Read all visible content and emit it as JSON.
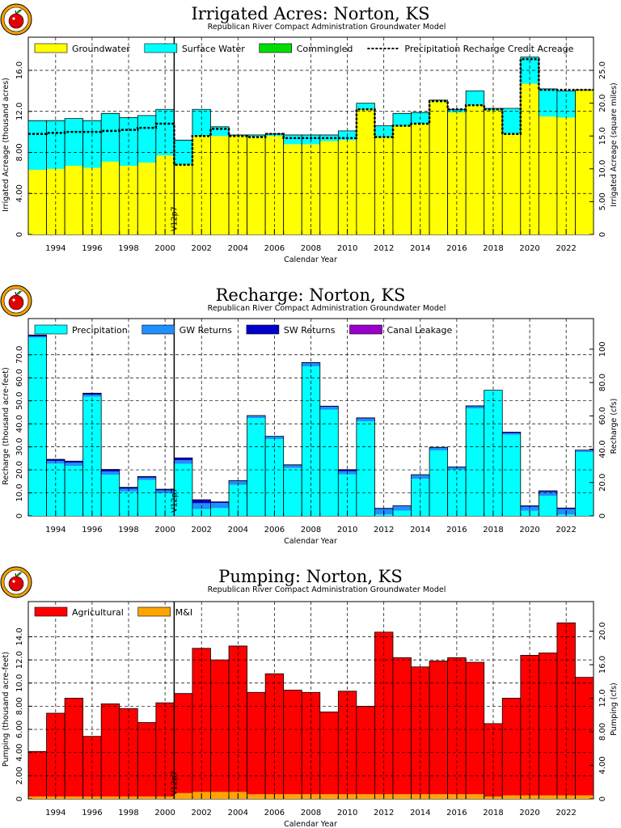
{
  "chart_data": [
    {
      "type": "bar",
      "title": "Irrigated Acres: Norton, KS",
      "subtitle": "Republican River Compact Administration Groundwater Model",
      "xlabel": "Calendar Year",
      "ylabel": "Irrigated Acreage (thousand acres)",
      "ylabel_right": "Irrigated Acreage (square miles)",
      "yticks": [
        "0",
        "4.00",
        "8.00",
        "12.0",
        "16.0"
      ],
      "yticks_right": [
        "0",
        "5.00",
        "10.0",
        "15.0",
        "20.0",
        "25.0"
      ],
      "ylim": [
        0,
        17.5
      ],
      "ylim_right": [
        0,
        27.34
      ],
      "x_tick_labels": [
        "1994",
        "1996",
        "1998",
        "2000",
        "2002",
        "2004",
        "2006",
        "2008",
        "2010",
        "2012",
        "2014",
        "2016",
        "2018",
        "2020",
        "2022"
      ],
      "years": [
        1993,
        1994,
        1995,
        1996,
        1997,
        1998,
        1999,
        2000,
        2001,
        2002,
        2003,
        2004,
        2005,
        2006,
        2007,
        2008,
        2009,
        2010,
        2011,
        2012,
        2013,
        2014,
        2015,
        2016,
        2017,
        2018,
        2019,
        2020,
        2021,
        2022,
        2023
      ],
      "series": [
        {
          "name": "Groundwater",
          "color": "#ffff00",
          "values": [
            6.3,
            6.4,
            6.7,
            6.5,
            7.1,
            6.7,
            7.0,
            7.7,
            6.8,
            9.6,
            9.6,
            9.6,
            9.5,
            9.6,
            8.8,
            8.8,
            9.1,
            9.2,
            12.2,
            9.5,
            10.6,
            10.8,
            13.0,
            11.9,
            12.6,
            12.1,
            9.8,
            14.7,
            11.5,
            11.4,
            14.1
          ]
        },
        {
          "name": "Surface Water",
          "color": "#00ffff",
          "values": [
            4.8,
            4.7,
            4.6,
            4.6,
            4.7,
            4.7,
            4.6,
            4.5,
            2.4,
            2.6,
            0.9,
            0.1,
            0.2,
            0.2,
            0.9,
            0.9,
            0.6,
            0.9,
            0.6,
            1.1,
            1.2,
            1.1,
            0.1,
            0.3,
            1.4,
            0.2,
            2.5,
            2.6,
            2.7,
            2.6,
            0.0
          ]
        },
        {
          "name": "Commingled",
          "color": "#00dd00",
          "values": [
            0,
            0,
            0,
            0,
            0,
            0,
            0,
            0,
            0,
            0,
            0,
            0,
            0,
            0,
            0,
            0,
            0,
            0,
            0,
            0,
            0,
            0,
            0,
            0,
            0,
            0,
            0,
            0,
            0,
            0,
            0
          ]
        }
      ],
      "line": {
        "name": "Precipitation Recharge Credit Acreage",
        "values": [
          9.8,
          9.9,
          10.0,
          10.0,
          10.1,
          10.2,
          10.4,
          10.8,
          6.8,
          9.6,
          10.3,
          9.6,
          9.5,
          9.8,
          9.4,
          9.4,
          9.4,
          9.4,
          12.2,
          9.5,
          10.6,
          10.8,
          13.0,
          12.2,
          12.6,
          12.2,
          9.8,
          17.1,
          14.1,
          14.1,
          14.1
        ]
      },
      "marker": "V12p7",
      "marker_year": 2000.5
    },
    {
      "type": "bar",
      "title": "Recharge: Norton, KS",
      "subtitle": "Republican River Compact Administration Groundwater Model",
      "xlabel": "Calendar Year",
      "ylabel": "Recharge (thousand acre-feet)",
      "ylabel_right": "Recharge (cfs)",
      "yticks": [
        "0",
        "10.0",
        "20.0",
        "30.0",
        "40.0",
        "50.0",
        "60.0",
        "70.0"
      ],
      "yticks_right": [
        "0",
        "20.0",
        "40.0",
        "60.0",
        "80.0",
        "100"
      ],
      "ylim": [
        0,
        78
      ],
      "ylim_right": [
        0,
        107.7
      ],
      "x_tick_labels": [
        "1994",
        "1996",
        "1998",
        "2000",
        "2002",
        "2004",
        "2006",
        "2008",
        "2010",
        "2012",
        "2014",
        "2016",
        "2018",
        "2020",
        "2022"
      ],
      "years": [
        1993,
        1994,
        1995,
        1996,
        1997,
        1998,
        1999,
        2000,
        2001,
        2002,
        2003,
        2004,
        2005,
        2006,
        2007,
        2008,
        2009,
        2010,
        2011,
        2012,
        2013,
        2014,
        2015,
        2016,
        2017,
        2018,
        2019,
        2020,
        2021,
        2022,
        2023
      ],
      "series": [
        {
          "name": "Precipitation",
          "color": "#00ffff",
          "values": [
            77.5,
            22.7,
            21.7,
            51.8,
            17.9,
            10.6,
            15.6,
            9.8,
            22.6,
            3.0,
            3.4,
            13.5,
            42.5,
            33.4,
            20.8,
            65.0,
            46.2,
            18.1,
            41.1,
            0.6,
            2.3,
            16.1,
            28.5,
            20.1,
            46.7,
            54.4,
            35.3,
            2.2,
            8.7,
            0.6,
            27.7
          ]
        },
        {
          "name": "GW Returns",
          "color": "#1e90ff",
          "values": [
            0.5,
            1.2,
            1.4,
            0.9,
            1.4,
            1.2,
            1.0,
            1.3,
            1.6,
            2.5,
            2.2,
            1.8,
            1.0,
            1.2,
            1.2,
            1.4,
            1.2,
            1.3,
            1.2,
            2.4,
            1.9,
            1.6,
            1.3,
            1.2,
            0.9,
            0.2,
            0.7,
            1.8,
            1.7,
            2.4,
            0.9
          ]
        },
        {
          "name": "SW Returns",
          "color": "#0000cc",
          "values": [
            0.6,
            0.7,
            0.7,
            0.6,
            0.9,
            0.6,
            0.5,
            0.5,
            1.0,
            1.5,
            0.5,
            0.0,
            0.1,
            0.0,
            0.2,
            0.2,
            0.3,
            0.7,
            0.3,
            0.3,
            0.2,
            0.2,
            0.0,
            0.0,
            0.2,
            0.0,
            0.4,
            0.4,
            0.5,
            0.4,
            0.0
          ]
        },
        {
          "name": "Canal Leakage",
          "color": "#9900cc",
          "values": [
            0,
            0,
            0,
            0,
            0,
            0,
            0,
            0,
            0,
            0,
            0,
            0,
            0,
            0,
            0,
            0,
            0,
            0,
            0,
            0,
            0,
            0,
            0,
            0,
            0,
            0,
            0,
            0,
            0,
            0,
            0
          ]
        }
      ],
      "marker": "V12p7",
      "marker_year": 2000.5
    },
    {
      "type": "bar",
      "title": "Pumping: Norton, KS",
      "subtitle": "Republican River Compact Administration Groundwater Model",
      "xlabel": "Calendar Year",
      "ylabel": "Pumping (thousand acre-feet)",
      "ylabel_right": "Pumping (cfs)",
      "yticks": [
        "0",
        "2.00",
        "4.00",
        "6.00",
        "8.00",
        "10.0",
        "12.0",
        "14.0"
      ],
      "yticks_right": [
        "0",
        "4.00",
        "8.00",
        "12.0",
        "16.0",
        "20.0"
      ],
      "ylim": [
        0,
        15.5
      ],
      "ylim_right": [
        0,
        21.4
      ],
      "x_tick_labels": [
        "1994",
        "1996",
        "1998",
        "2000",
        "2002",
        "2004",
        "2006",
        "2008",
        "2010",
        "2012",
        "2014",
        "2016",
        "2018",
        "2020",
        "2022"
      ],
      "years": [
        1993,
        1994,
        1995,
        1996,
        1997,
        1998,
        1999,
        2000,
        2001,
        2002,
        2003,
        2004,
        2005,
        2006,
        2007,
        2008,
        2009,
        2010,
        2011,
        2012,
        2013,
        2014,
        2015,
        2016,
        2017,
        2018,
        2019,
        2020,
        2021,
        2022,
        2023
      ],
      "series": [
        {
          "name": "M&I",
          "color": "#ffa500",
          "values": [
            0.2,
            0.2,
            0.2,
            0.2,
            0.2,
            0.2,
            0.2,
            0.2,
            0.5,
            0.6,
            0.6,
            0.6,
            0.4,
            0.4,
            0.4,
            0.4,
            0.4,
            0.4,
            0.4,
            0.4,
            0.4,
            0.4,
            0.4,
            0.4,
            0.4,
            0.2,
            0.3,
            0.3,
            0.3,
            0.3,
            0.3
          ]
        },
        {
          "name": "Agricultural",
          "color": "#ff0000",
          "values": [
            3.9,
            7.2,
            8.5,
            5.2,
            8.0,
            7.6,
            6.4,
            8.1,
            8.6,
            12.4,
            11.4,
            12.6,
            8.8,
            10.4,
            9.0,
            8.8,
            7.1,
            8.9,
            7.6,
            14.0,
            11.8,
            11.0,
            11.5,
            11.8,
            11.4,
            6.3,
            8.4,
            12.1,
            12.3,
            14.9,
            10.2
          ]
        }
      ],
      "legend_order": [
        "Agricultural",
        "M&I"
      ],
      "marker": "V12p7",
      "marker_year": 2000.5
    }
  ]
}
